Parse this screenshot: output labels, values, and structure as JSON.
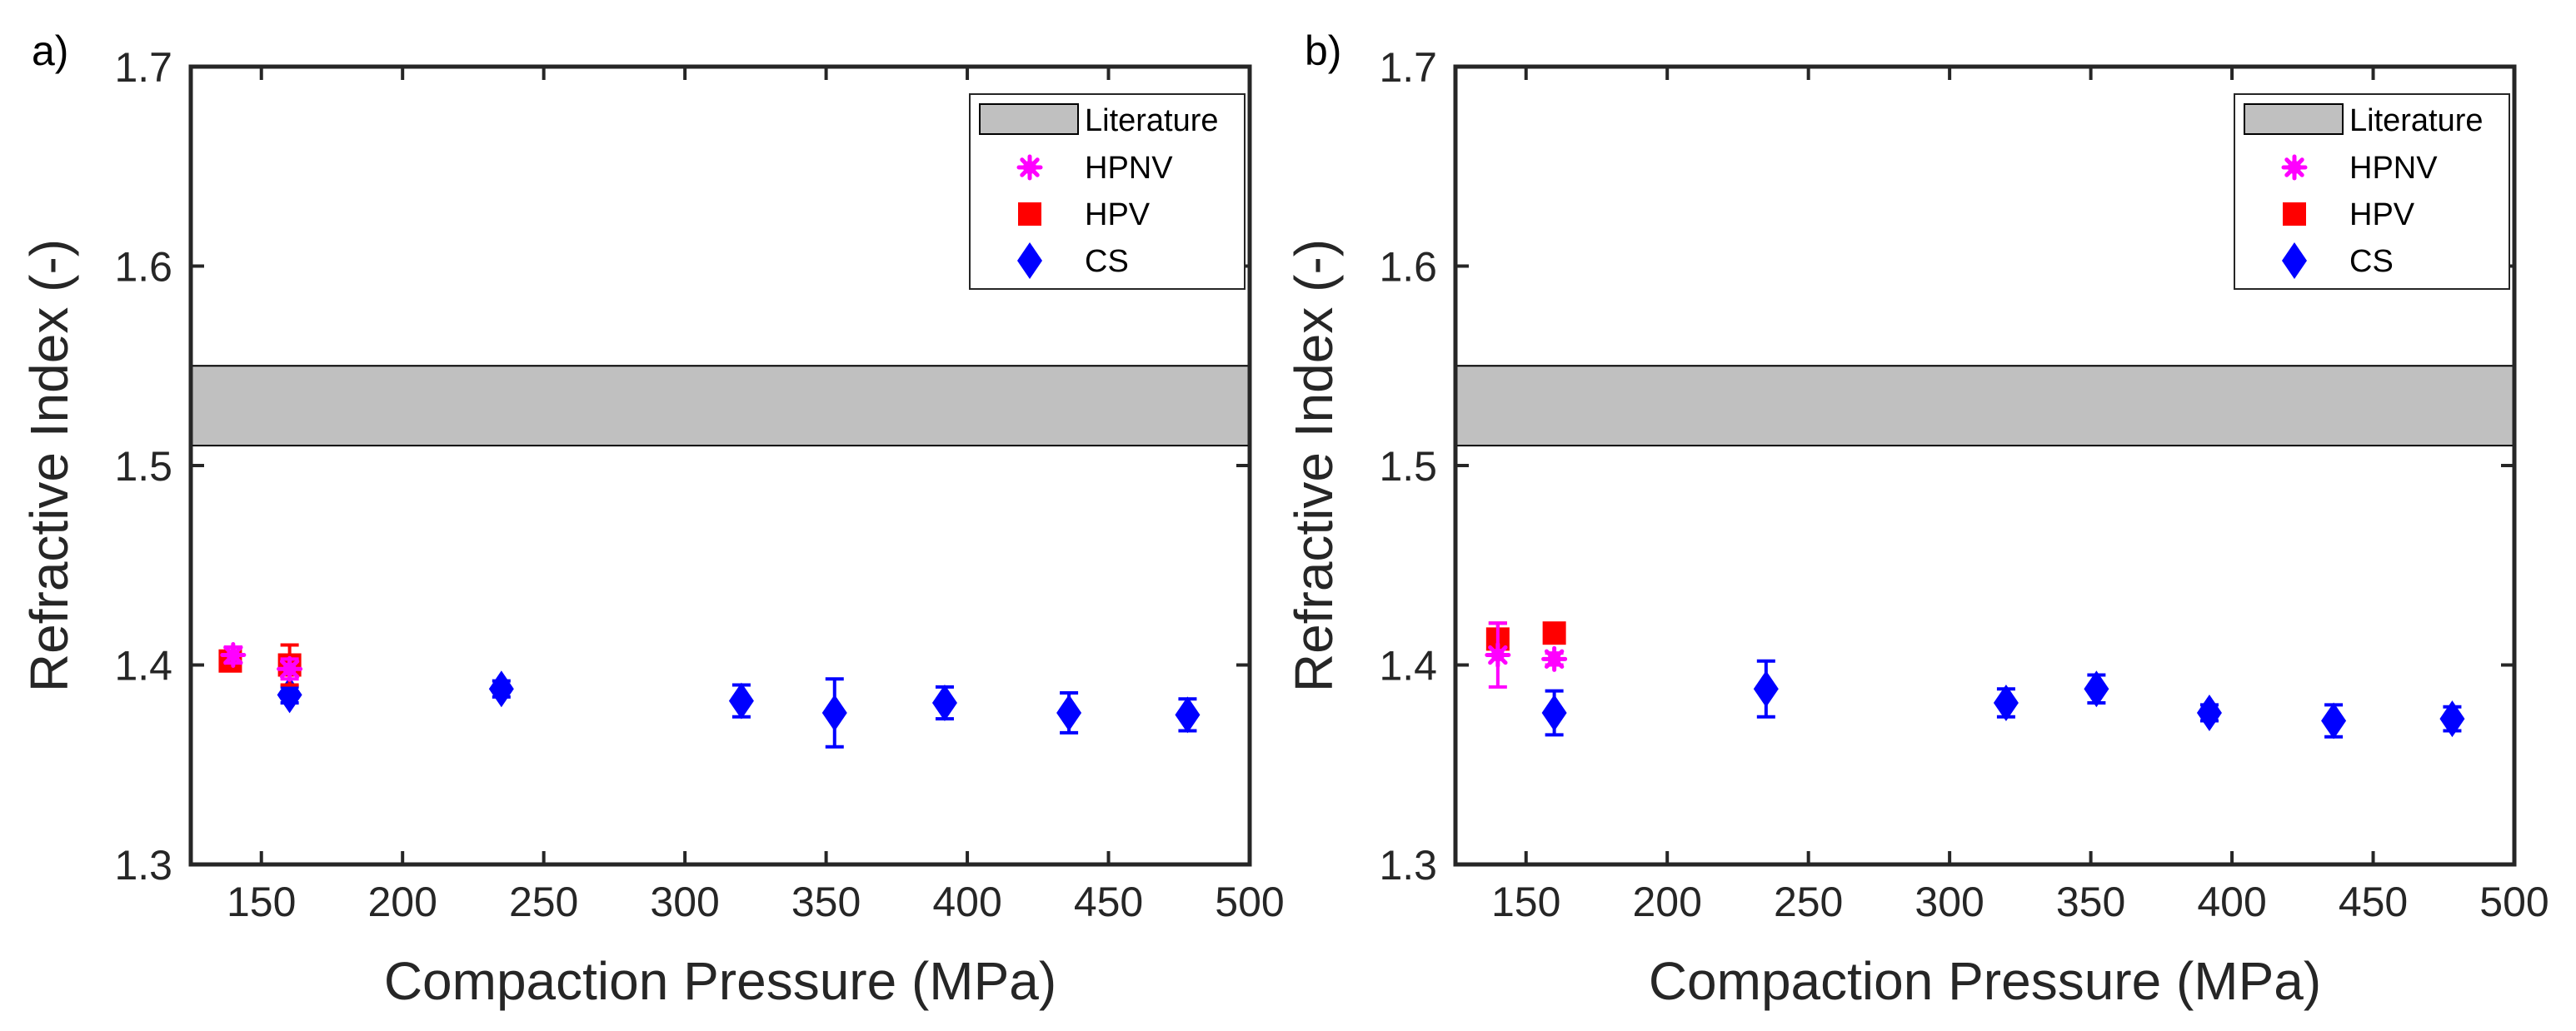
{
  "colors": {
    "hpnv": "#ff00ff",
    "hpv": "#ff0000",
    "cs": "#0000ff",
    "literature_fill": "#c0c0c0",
    "axis": "#262626"
  },
  "chart_data": [
    {
      "type": "scatter",
      "panel_label": "a)",
      "xlabel": "Compaction Pressure (MPa)",
      "ylabel": "Refractive Index (-)",
      "xlim": [
        125,
        500
      ],
      "ylim": [
        1.3,
        1.7
      ],
      "xticks": [
        "150",
        "200",
        "250",
        "300",
        "350",
        "400",
        "450",
        "500"
      ],
      "xtick_values": [
        150,
        200,
        250,
        300,
        350,
        400,
        450,
        500
      ],
      "yticks": [
        "1.3",
        "1.4",
        "1.5",
        "1.6",
        "1.7"
      ],
      "ytick_values": [
        1.3,
        1.4,
        1.5,
        1.6,
        1.7
      ],
      "grid": false,
      "legend_position": "top-right",
      "literature_band": {
        "name": "Literature",
        "y_range": [
          1.51,
          1.55
        ]
      },
      "series": [
        {
          "name": "HPNV",
          "marker": "asterisk",
          "points": [
            {
              "x": 140,
              "y": 1.405,
              "err": 0.004
            },
            {
              "x": 160,
              "y": 1.398,
              "err": 0.005
            }
          ]
        },
        {
          "name": "HPV",
          "marker": "square",
          "points": [
            {
              "x": 139,
              "y": 1.402,
              "err": 0.003
            },
            {
              "x": 160,
              "y": 1.4,
              "err": 0.01
            }
          ]
        },
        {
          "name": "CS",
          "marker": "diamond",
          "points": [
            {
              "x": 160,
              "y": 1.385,
              "err": 0.004
            },
            {
              "x": 235,
              "y": 1.388,
              "err": 0.004
            },
            {
              "x": 320,
              "y": 1.382,
              "err": 0.008
            },
            {
              "x": 353,
              "y": 1.376,
              "err": 0.017
            },
            {
              "x": 392,
              "y": 1.381,
              "err": 0.008
            },
            {
              "x": 436,
              "y": 1.376,
              "err": 0.01
            },
            {
              "x": 478,
              "y": 1.375,
              "err": 0.008
            }
          ]
        }
      ]
    },
    {
      "type": "scatter",
      "panel_label": "b)",
      "xlabel": "Compaction Pressure (MPa)",
      "ylabel": "Refractive Index (-)",
      "xlim": [
        125,
        500
      ],
      "ylim": [
        1.3,
        1.7
      ],
      "xticks": [
        "150",
        "200",
        "250",
        "300",
        "350",
        "400",
        "450",
        "500"
      ],
      "xtick_values": [
        150,
        200,
        250,
        300,
        350,
        400,
        450,
        500
      ],
      "yticks": [
        "1.3",
        "1.4",
        "1.5",
        "1.6",
        "1.7"
      ],
      "ytick_values": [
        1.3,
        1.4,
        1.5,
        1.6,
        1.7
      ],
      "grid": false,
      "legend_position": "top-right",
      "literature_band": {
        "name": "Literature",
        "y_range": [
          1.51,
          1.55
        ]
      },
      "series": [
        {
          "name": "HPNV",
          "marker": "asterisk",
          "points": [
            {
              "x": 140,
              "y": 1.405,
              "err": 0.016
            },
            {
              "x": 160,
              "y": 1.403,
              "err": 0.003
            }
          ]
        },
        {
          "name": "HPV",
          "marker": "square",
          "points": [
            {
              "x": 140,
              "y": 1.413,
              "err": 0.008
            },
            {
              "x": 160,
              "y": 1.416,
              "err": 0.004
            }
          ]
        },
        {
          "name": "CS",
          "marker": "diamond",
          "points": [
            {
              "x": 160,
              "y": 1.376,
              "err": 0.011
            },
            {
              "x": 235,
              "y": 1.388,
              "err": 0.014
            },
            {
              "x": 320,
              "y": 1.381,
              "err": 0.007
            },
            {
              "x": 352,
              "y": 1.388,
              "err": 0.007
            },
            {
              "x": 392,
              "y": 1.376,
              "err": 0.004
            },
            {
              "x": 436,
              "y": 1.372,
              "err": 0.008
            },
            {
              "x": 478,
              "y": 1.373,
              "err": 0.006
            }
          ]
        }
      ]
    }
  ]
}
